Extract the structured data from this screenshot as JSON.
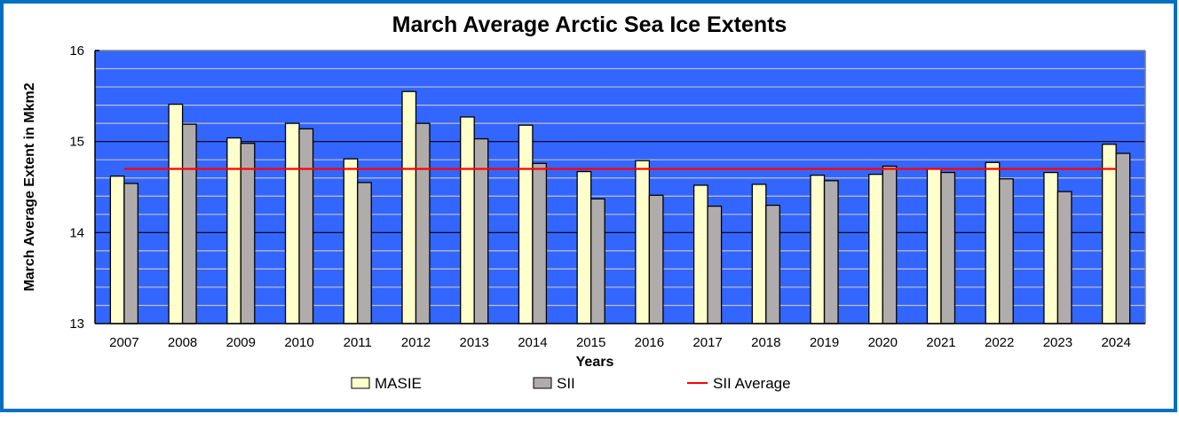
{
  "chart_data": {
    "type": "bar",
    "title": "March Average Arctic Sea Ice Extents",
    "xlabel": "Years",
    "ylabel": "March Average Extent in Mkm2",
    "ylim": [
      13,
      16
    ],
    "yticks": [
      "13",
      "14",
      "15",
      "16"
    ],
    "minor_grid_step": 0.2,
    "grid": true,
    "legend_position": "bottom",
    "categories": [
      "2007",
      "2008",
      "2009",
      "2010",
      "2011",
      "2012",
      "2013",
      "2014",
      "2015",
      "2016",
      "2017",
      "2018",
      "2019",
      "2020",
      "2021",
      "2022",
      "2023",
      "2024"
    ],
    "series": [
      {
        "name": "MASIE",
        "kind": "bar",
        "color": "#ffffcc",
        "values": [
          14.62,
          15.41,
          15.04,
          15.2,
          14.81,
          15.55,
          15.27,
          15.18,
          14.67,
          14.79,
          14.52,
          14.53,
          14.63,
          14.64,
          14.7,
          14.77,
          14.66,
          14.97
        ]
      },
      {
        "name": "SII",
        "kind": "bar",
        "color": "#b0acac",
        "values": [
          14.54,
          15.19,
          14.98,
          15.14,
          14.55,
          15.2,
          15.03,
          14.76,
          14.37,
          14.41,
          14.29,
          14.3,
          14.57,
          14.73,
          14.66,
          14.59,
          14.45,
          14.87
        ]
      },
      {
        "name": "SII Average",
        "kind": "line",
        "color": "#ff0000",
        "value": 14.7
      }
    ],
    "colors": {
      "plot_background": "#3366ff",
      "minor_grid": "#c0c0c0",
      "major_grid": "#000000",
      "frame_border": "#0070c0"
    }
  }
}
